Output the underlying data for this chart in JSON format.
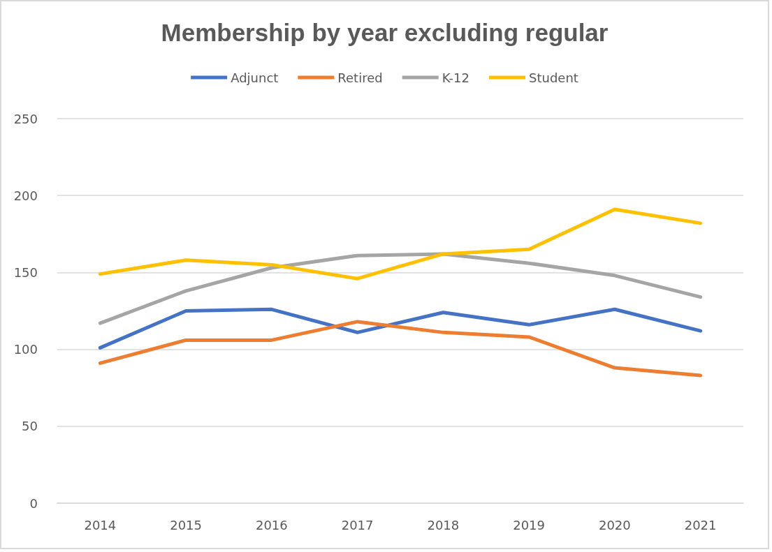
{
  "chart_data": {
    "type": "line",
    "title": "Membership by year excluding regular",
    "categories": [
      "2014",
      "2015",
      "2016",
      "2017",
      "2018",
      "2019",
      "2020",
      "2021"
    ],
    "series": [
      {
        "name": "Adjunct",
        "color": "#4472c4",
        "values": [
          101,
          125,
          126,
          111,
          124,
          116,
          126,
          112
        ]
      },
      {
        "name": "Retired",
        "color": "#ed7d31",
        "values": [
          91,
          106,
          106,
          118,
          111,
          108,
          88,
          83
        ]
      },
      {
        "name": "K-12",
        "color": "#a5a5a5",
        "values": [
          117,
          138,
          153,
          161,
          162,
          156,
          148,
          134
        ]
      },
      {
        "name": "Student",
        "color": "#ffc000",
        "values": [
          149,
          158,
          155,
          146,
          162,
          165,
          191,
          182
        ]
      }
    ],
    "ylim": [
      0,
      250
    ],
    "yticks": [
      0,
      50,
      100,
      150,
      200,
      250
    ],
    "grid": "y",
    "legend": "top",
    "marker": "none",
    "line_style": "solid"
  }
}
